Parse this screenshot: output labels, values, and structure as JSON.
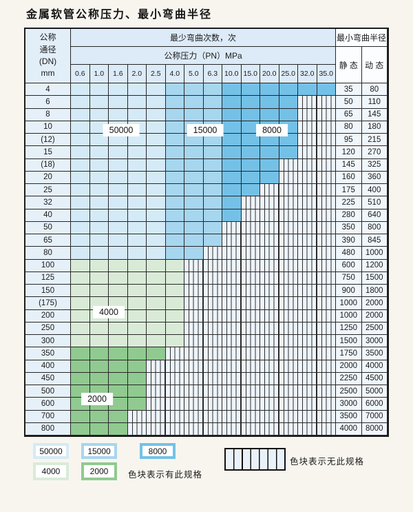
{
  "title": "金属软管公称压力、最小弯曲半径",
  "table": {
    "header": {
      "dn_lines": [
        "公称",
        "通径",
        "(DN)",
        "mm"
      ],
      "cycles_label": "最少弯曲次数，次",
      "pressure_label": "公称压力（PN）MPa",
      "pressure_values": [
        "0.6",
        "1.0",
        "1.6",
        "2.0",
        "2.5",
        "4.0",
        "5.0",
        "6.3",
        "10.0",
        "15.0",
        "20.0",
        "25.0",
        "32.0",
        "35.0"
      ],
      "radius_label": "最小弯曲半径",
      "static_label": "静 态",
      "dynamic_label": "动 态"
    },
    "rows": [
      {
        "dn": "4",
        "palette": "blue",
        "colored": 14,
        "static": "35",
        "dynamic": "80"
      },
      {
        "dn": "6",
        "palette": "blue",
        "colored": 12,
        "static": "50",
        "dynamic": "110"
      },
      {
        "dn": "8",
        "palette": "blue",
        "colored": 12,
        "static": "65",
        "dynamic": "145"
      },
      {
        "dn": "10",
        "palette": "blue",
        "colored": 12,
        "static": "80",
        "dynamic": "180"
      },
      {
        "dn": "(12)",
        "palette": "blue",
        "colored": 12,
        "static": "95",
        "dynamic": "215"
      },
      {
        "dn": "15",
        "palette": "blue",
        "colored": 12,
        "static": "120",
        "dynamic": "270"
      },
      {
        "dn": "(18)",
        "palette": "blue",
        "colored": 11,
        "static": "145",
        "dynamic": "325"
      },
      {
        "dn": "20",
        "palette": "blue",
        "colored": 11,
        "static": "160",
        "dynamic": "360"
      },
      {
        "dn": "25",
        "palette": "blue",
        "colored": 10,
        "static": "175",
        "dynamic": "400"
      },
      {
        "dn": "32",
        "palette": "blue",
        "colored": 9,
        "static": "225",
        "dynamic": "510"
      },
      {
        "dn": "40",
        "palette": "blue",
        "colored": 9,
        "static": "280",
        "dynamic": "640"
      },
      {
        "dn": "50",
        "palette": "blue",
        "colored": 8,
        "static": "350",
        "dynamic": "800"
      },
      {
        "dn": "65",
        "palette": "blue",
        "colored": 8,
        "static": "390",
        "dynamic": "845"
      },
      {
        "dn": "80",
        "palette": "blue",
        "colored": 7,
        "static": "480",
        "dynamic": "1000"
      },
      {
        "dn": "100",
        "palette": "g4000",
        "colored": 6,
        "static": "600",
        "dynamic": "1200"
      },
      {
        "dn": "125",
        "palette": "g4000",
        "colored": 6,
        "static": "750",
        "dynamic": "1500"
      },
      {
        "dn": "150",
        "palette": "g4000",
        "colored": 6,
        "static": "900",
        "dynamic": "1800"
      },
      {
        "dn": "(175)",
        "palette": "g4000",
        "colored": 6,
        "static": "1000",
        "dynamic": "2000"
      },
      {
        "dn": "200",
        "palette": "g4000",
        "colored": 6,
        "static": "1000",
        "dynamic": "2000"
      },
      {
        "dn": "250",
        "palette": "g4000",
        "colored": 6,
        "static": "1250",
        "dynamic": "2500"
      },
      {
        "dn": "300",
        "palette": "g4000",
        "colored": 6,
        "static": "1500",
        "dynamic": "3000"
      },
      {
        "dn": "350",
        "palette": "g2000",
        "colored": 5,
        "static": "1750",
        "dynamic": "3500"
      },
      {
        "dn": "400",
        "palette": "g2000",
        "colored": 4,
        "static": "2000",
        "dynamic": "4000"
      },
      {
        "dn": "450",
        "palette": "g2000",
        "colored": 4,
        "static": "2250",
        "dynamic": "4500"
      },
      {
        "dn": "500",
        "palette": "g2000",
        "colored": 4,
        "static": "2500",
        "dynamic": "5000"
      },
      {
        "dn": "600",
        "palette": "g2000",
        "colored": 4,
        "static": "3000",
        "dynamic": "6000"
      },
      {
        "dn": "700",
        "palette": "g2000",
        "colored": 3,
        "static": "3500",
        "dynamic": "7000"
      },
      {
        "dn": "800",
        "palette": "g2000",
        "colored": 3,
        "static": "4000",
        "dynamic": "8000"
      }
    ],
    "regions": {
      "blue_50000_pressure_cols": [
        "0.6",
        "2.5"
      ],
      "blue_15000_pressure_cols": [
        "4.0",
        "6.3"
      ],
      "blue_8000_pressure_cols": [
        "10.0",
        "35.0"
      ],
      "green_4000_dn_rows": [
        "100",
        "300"
      ],
      "green_2000_dn_rows": [
        "350",
        "800"
      ]
    },
    "overlays": [
      {
        "text": "50000"
      },
      {
        "text": "15000"
      },
      {
        "text": "8000"
      },
      {
        "text": "4000"
      },
      {
        "text": "2000"
      }
    ]
  },
  "legend": {
    "items": [
      {
        "value": "50000",
        "color_key": "c50000"
      },
      {
        "value": "15000",
        "color_key": "c15000"
      },
      {
        "value": "8000",
        "color_key": "c8000"
      },
      {
        "value": "4000",
        "color_key": "c4000"
      },
      {
        "value": "2000",
        "color_key": "c2000"
      }
    ],
    "has_spec_note": "色块表示有此规格",
    "no_spec_note": "色块表示无此规格"
  },
  "colors": {
    "c50000": "#d5eaf7",
    "c15000": "#a7d6ef",
    "c8000": "#74c1e7",
    "c4000": "#d9ebd7",
    "c2000": "#90ca90",
    "hatch_bg": "#edf4fb",
    "header_bg": "#dcebf7",
    "page_bg": "#f8f5ef"
  }
}
